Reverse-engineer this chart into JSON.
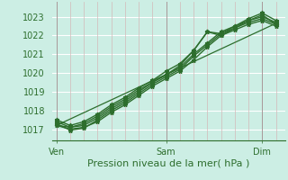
{
  "title": "",
  "xlabel": "Pression niveau de la mer( hPa )",
  "ylabel": "",
  "bg_color": "#cceee4",
  "grid_color_h": "#ffffff",
  "grid_color_v_minor": "#d4b8b8",
  "grid_color_v_major": "#a89898",
  "line_color": "#2d6e2d",
  "axis_label_color": "#2d6e2d",
  "tick_color": "#2d6e2d",
  "ylim": [
    1016.4,
    1023.8
  ],
  "xlim": [
    -2,
    100
  ],
  "yticks": [
    1017,
    1018,
    1019,
    1020,
    1021,
    1022,
    1023
  ],
  "xtick_positions": [
    0,
    48,
    90
  ],
  "xtick_labels": [
    "Ven",
    "Sam",
    "Dim"
  ],
  "vline_positions": [
    0,
    48,
    90
  ],
  "minor_x_ticks": [
    6,
    12,
    18,
    24,
    30,
    36,
    42,
    54,
    60,
    66,
    72,
    78,
    84,
    96
  ],
  "series": [
    [
      0,
      1017.2,
      6,
      1017.0,
      12,
      1017.1,
      18,
      1017.4,
      24,
      1017.9,
      30,
      1018.3,
      36,
      1018.8,
      42,
      1019.3,
      48,
      1019.7,
      54,
      1020.1,
      60,
      1020.7,
      66,
      1021.4,
      72,
      1022.0,
      78,
      1022.4,
      84,
      1022.8,
      90,
      1023.0,
      96,
      1022.7
    ],
    [
      0,
      1017.4,
      6,
      1017.1,
      12,
      1017.2,
      18,
      1017.6,
      24,
      1018.1,
      30,
      1018.5,
      36,
      1019.0,
      42,
      1019.5,
      48,
      1019.9,
      54,
      1020.3,
      60,
      1021.0,
      66,
      1021.6,
      72,
      1022.2,
      78,
      1022.5,
      84,
      1022.9,
      90,
      1023.2,
      96,
      1022.8
    ],
    [
      0,
      1017.3,
      6,
      1016.95,
      12,
      1017.05,
      18,
      1017.5,
      24,
      1018.0,
      30,
      1018.4,
      36,
      1018.9,
      42,
      1019.4,
      48,
      1019.8,
      54,
      1020.2,
      60,
      1020.9,
      66,
      1021.5,
      72,
      1022.1,
      78,
      1022.5,
      84,
      1022.8,
      90,
      1023.1,
      96,
      1022.6
    ],
    [
      0,
      1017.2,
      6,
      1017.1,
      12,
      1017.3,
      18,
      1017.7,
      24,
      1018.2,
      30,
      1018.6,
      36,
      1019.1,
      42,
      1019.5,
      48,
      1019.9,
      54,
      1020.4,
      60,
      1021.2,
      66,
      1022.2,
      72,
      1022.0,
      78,
      1022.3,
      84,
      1022.6,
      90,
      1022.8,
      96,
      1022.5
    ],
    [
      0,
      1017.5,
      6,
      1017.2,
      12,
      1017.4,
      18,
      1017.8,
      24,
      1018.3,
      30,
      1018.7,
      36,
      1019.2,
      42,
      1019.6,
      48,
      1020.1,
      54,
      1020.5,
      60,
      1021.2,
      66,
      1022.2,
      72,
      1022.1,
      78,
      1022.4,
      84,
      1022.7,
      90,
      1022.9,
      96,
      1022.6
    ],
    [
      0,
      1017.2,
      96,
      1022.65
    ]
  ],
  "marker": "*",
  "marker_size": 3.5,
  "line_widths": [
    1.0,
    1.0,
    1.0,
    1.0,
    1.0,
    0.9
  ],
  "has_markers": [
    true,
    true,
    true,
    true,
    true,
    false
  ]
}
